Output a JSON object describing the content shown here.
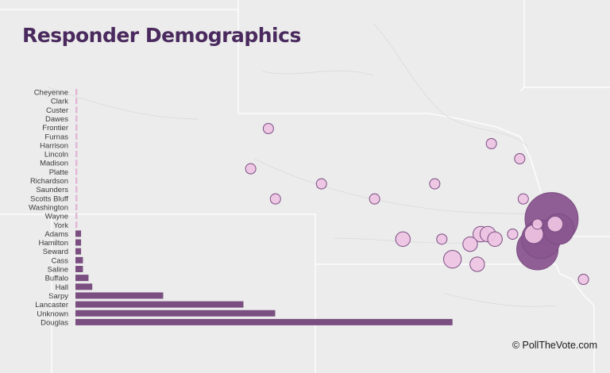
{
  "title": "Responder Demographics",
  "credit": "© PollTheVote.com",
  "colors": {
    "title": "#4a2a5e",
    "bar_dark": "#7a4e80",
    "bar_light": "#e3b5d6",
    "bubble_light": "#eec3e3",
    "bubble_mid": "#d8a3cf",
    "bubble_dark": "#8a5690",
    "bubble_stroke": "#7b4d82",
    "map_bg": "#ececec",
    "map_lines": "#ffffff"
  },
  "chart_data": [
    {
      "type": "bar",
      "orientation": "horizontal",
      "categories": [
        "Cheyenne",
        "Clark",
        "Custer",
        "Dawes",
        "Frontier",
        "Furnas",
        "Harrison",
        "Lincoln",
        "Madison",
        "Platte",
        "Richardson",
        "Saunders",
        "Scotts Bluff",
        "Washington",
        "Wayne",
        "York",
        "Adams",
        "Hamilton",
        "Seward",
        "Cass",
        "Saline",
        "Buffalo",
        "Hall",
        "Sarpy",
        "Lancaster",
        "Unknown",
        "Douglas"
      ],
      "values": [
        1,
        1,
        1,
        1,
        1,
        1,
        1,
        1,
        1,
        1,
        1,
        1,
        1,
        1,
        1,
        1,
        3,
        3,
        3,
        4,
        4,
        7,
        9,
        47,
        90,
        107,
        202
      ],
      "xlim": [
        0,
        210
      ]
    },
    {
      "type": "scatter",
      "subtype": "bubble-map",
      "points": [
        {
          "lon": -103.2,
          "lat": 42.7,
          "size": 1
        },
        {
          "lon": -103.7,
          "lat": 41.9,
          "size": 1
        },
        {
          "lon": -101.7,
          "lat": 41.6,
          "size": 1
        },
        {
          "lon": -103.0,
          "lat": 41.3,
          "size": 1
        },
        {
          "lon": -100.2,
          "lat": 41.3,
          "size": 1
        },
        {
          "lon": -99.4,
          "lat": 40.5,
          "size": 3
        },
        {
          "lon": -98.5,
          "lat": 41.6,
          "size": 1
        },
        {
          "lon": -98.3,
          "lat": 40.5,
          "size": 1
        },
        {
          "lon": -97.5,
          "lat": 40.4,
          "size": 3
        },
        {
          "lon": -97.3,
          "lat": 40.0,
          "size": 3
        },
        {
          "lon": -98.0,
          "lat": 40.1,
          "size": 7
        },
        {
          "lon": -97.2,
          "lat": 40.6,
          "size": 4
        },
        {
          "lon": -97.0,
          "lat": 40.6,
          "size": 4
        },
        {
          "lon": -96.8,
          "lat": 40.5,
          "size": 3
        },
        {
          "lon": -96.3,
          "lat": 40.6,
          "size": 1
        },
        {
          "lon": -96.0,
          "lat": 41.3,
          "size": 1
        },
        {
          "lon": -96.1,
          "lat": 42.1,
          "size": 1
        },
        {
          "lon": -96.9,
          "lat": 42.4,
          "size": 1
        },
        {
          "lon": -95.6,
          "lat": 40.3,
          "size": 107
        },
        {
          "lon": -95.7,
          "lat": 40.6,
          "size": 9
        },
        {
          "lon": -95.2,
          "lat": 40.9,
          "size": 202
        },
        {
          "lon": -95.0,
          "lat": 40.7,
          "size": 47
        },
        {
          "lon": -95.1,
          "lat": 40.8,
          "size": 4
        },
        {
          "lon": -95.5,
          "lat": 40.5,
          "size": 90
        },
        {
          "lon": -95.6,
          "lat": 40.8,
          "size": 1
        },
        {
          "lon": -94.3,
          "lat": 39.7,
          "size": 1
        }
      ]
    }
  ]
}
